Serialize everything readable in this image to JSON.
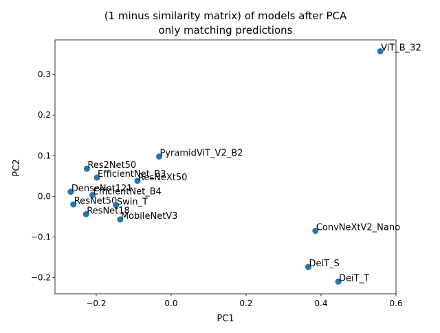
{
  "chart_data": {
    "type": "scatter",
    "title_lines": [
      "(1 minus similarity matrix) of models after PCA",
      "only matching predictions"
    ],
    "xlabel": "PC1",
    "ylabel": "PC2",
    "xlim": [
      -0.31,
      0.6
    ],
    "ylim": [
      -0.24,
      0.385
    ],
    "xticks": [
      -0.2,
      0.0,
      0.2,
      0.4,
      0.6
    ],
    "xtick_labels": [
      "−0.2",
      "0.0",
      "0.2",
      "0.4",
      "0.6"
    ],
    "yticks": [
      -0.2,
      -0.1,
      0.0,
      0.1,
      0.2,
      0.3
    ],
    "ytick_labels": [
      "−0.2",
      "−0.1",
      "0.0",
      "0.1",
      "0.2",
      "0.3"
    ],
    "grid": false,
    "marker_color": "#1f77b4",
    "points": [
      {
        "label": "ViT_B_32",
        "x": 0.558,
        "y": 0.357
      },
      {
        "label": "PyramidViT_V2_B2",
        "x": -0.032,
        "y": 0.098
      },
      {
        "label": "Res2Net50",
        "x": -0.225,
        "y": 0.068
      },
      {
        "label": "EfficientNet_B3",
        "x": -0.198,
        "y": 0.046
      },
      {
        "label": "ResNeXt50",
        "x": -0.09,
        "y": 0.038
      },
      {
        "label": "DenseNet121",
        "x": -0.268,
        "y": 0.011
      },
      {
        "label": "EfficientNet_B4",
        "x": -0.21,
        "y": 0.003
      },
      {
        "label": "ResNet50",
        "x": -0.261,
        "y": -0.02
      },
      {
        "label": "Swin_T",
        "x": -0.147,
        "y": -0.022
      },
      {
        "label": "ResNet18",
        "x": -0.227,
        "y": -0.044
      },
      {
        "label": "MobileNetV3",
        "x": -0.136,
        "y": -0.057
      },
      {
        "label": "ConvNeXtV2_Nano",
        "x": 0.385,
        "y": -0.085
      },
      {
        "label": "DeiT_S",
        "x": 0.366,
        "y": -0.174
      },
      {
        "label": "DeiT_T",
        "x": 0.446,
        "y": -0.21
      }
    ]
  }
}
